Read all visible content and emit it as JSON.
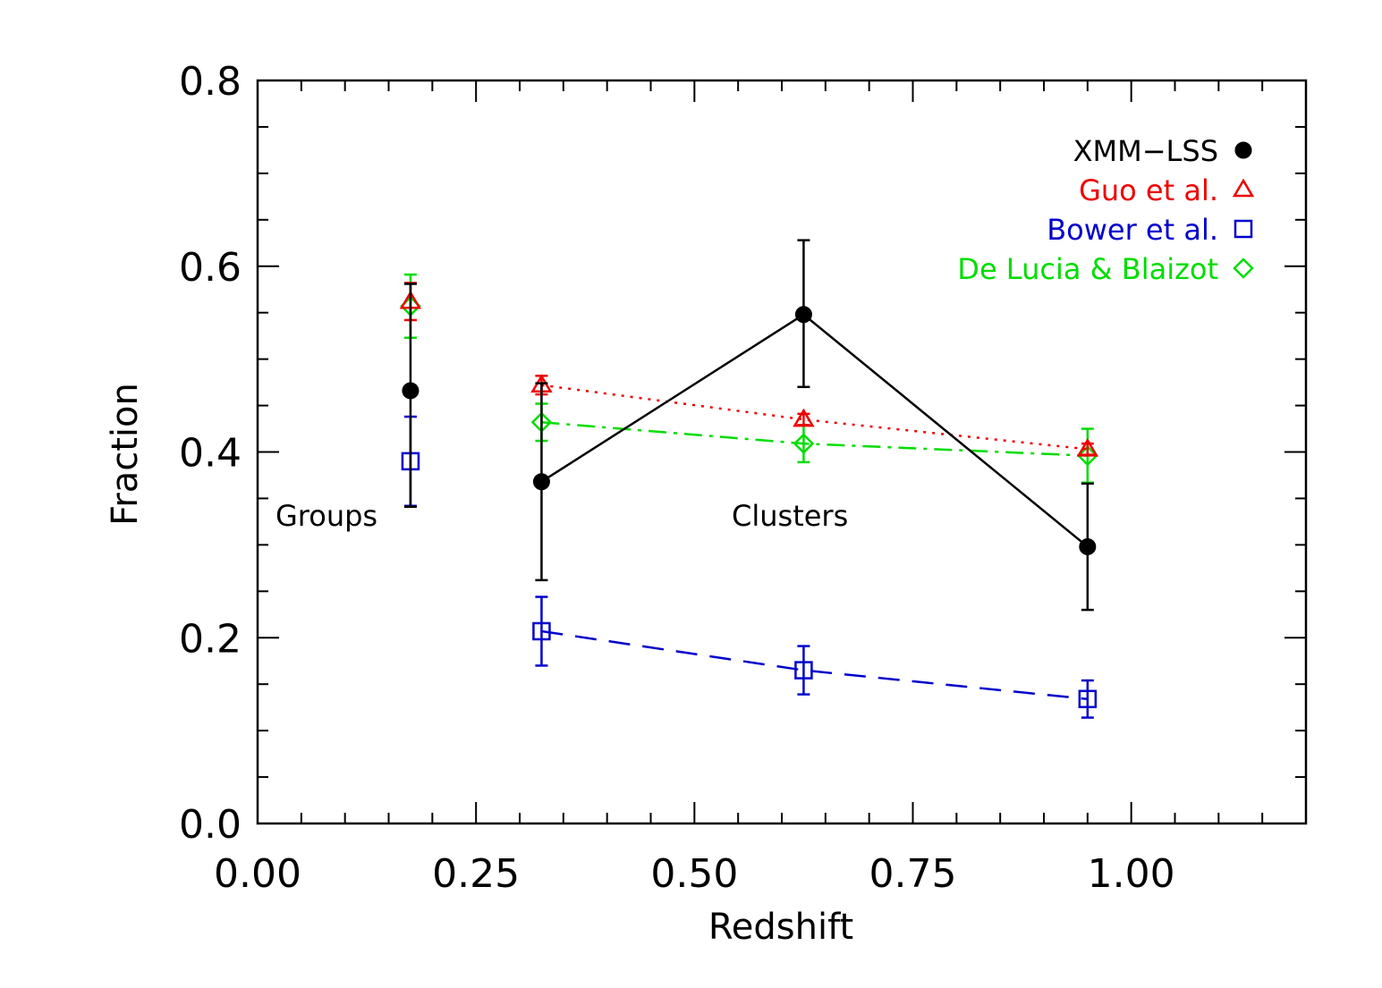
{
  "chart_data": {
    "type": "scatter",
    "title": "",
    "xlabel": "Redshift",
    "ylabel": "Fraction",
    "xlim": [
      0.0,
      1.2
    ],
    "ylim": [
      0.0,
      0.8
    ],
    "x_ticks": [
      "0.00",
      "0.25",
      "0.50",
      "0.75",
      "1.00"
    ],
    "y_ticks": [
      "0.0",
      "0.2",
      "0.4",
      "0.6",
      "0.8"
    ],
    "grid": false,
    "legend_position": "top-right",
    "annotations": [
      "Groups",
      "Clusters"
    ],
    "series": [
      {
        "name": "XMM−LSS",
        "color": "#000000",
        "marker": "filled-circle",
        "line": "solid",
        "groups_point": {
          "x": 0.175,
          "y": 0.466,
          "err_low": 0.125,
          "err_high": 0.115
        },
        "points": [
          {
            "x": 0.325,
            "y": 0.368,
            "err_low": 0.106,
            "err_high": 0.106
          },
          {
            "x": 0.625,
            "y": 0.548,
            "err_low": 0.078,
            "err_high": 0.08
          },
          {
            "x": 0.95,
            "y": 0.298,
            "err_low": 0.068,
            "err_high": 0.068
          }
        ]
      },
      {
        "name": "Guo et al.",
        "color": "#ee0000",
        "marker": "open-triangle",
        "line": "dotted",
        "groups_point": {
          "x": 0.175,
          "y": 0.562,
          "err_low": 0.02,
          "err_high": 0.02
        },
        "points": [
          {
            "x": 0.325,
            "y": 0.472,
            "err_low": 0.01,
            "err_high": 0.01
          },
          {
            "x": 0.625,
            "y": 0.435,
            "err_low": 0.006,
            "err_high": 0.006
          },
          {
            "x": 0.95,
            "y": 0.403,
            "err_low": 0.006,
            "err_high": 0.006
          }
        ]
      },
      {
        "name": "Bower et  al.",
        "color": "#0000cc",
        "marker": "open-square",
        "line": "dashed",
        "groups_point": {
          "x": 0.175,
          "y": 0.39,
          "err_low": 0.048,
          "err_high": 0.048
        },
        "points": [
          {
            "x": 0.325,
            "y": 0.207,
            "err_low": 0.037,
            "err_high": 0.037
          },
          {
            "x": 0.625,
            "y": 0.165,
            "err_low": 0.026,
            "err_high": 0.026
          },
          {
            "x": 0.95,
            "y": 0.134,
            "err_low": 0.02,
            "err_high": 0.02
          }
        ]
      },
      {
        "name": "De Lucia & Blaizot",
        "color": "#00dd00",
        "marker": "open-diamond",
        "line": "dash-dot",
        "groups_point": {
          "x": 0.175,
          "y": 0.557,
          "err_low": 0.034,
          "err_high": 0.034
        },
        "points": [
          {
            "x": 0.325,
            "y": 0.432,
            "err_low": 0.02,
            "err_high": 0.02
          },
          {
            "x": 0.625,
            "y": 0.409,
            "err_low": 0.02,
            "err_high": 0.02
          },
          {
            "x": 0.95,
            "y": 0.396,
            "err_low": 0.029,
            "err_high": 0.029
          }
        ]
      }
    ]
  }
}
